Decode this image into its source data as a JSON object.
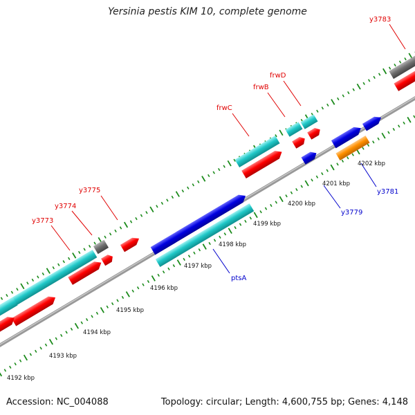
{
  "title": "Yersinia pestis KIM 10, complete genome",
  "footer": {
    "accession": "Accession: NC_004088",
    "summary": "Topology: circular; Length: 4,600,755 bp; Genes: 4,148"
  },
  "colors": {
    "backbone": "#888888",
    "tick": "#1a8a1a",
    "label_red": "#e00000",
    "label_blue": "#0000cc",
    "feature_red": "#ff0000",
    "feature_cyan": "#20c8c8",
    "feature_blue": "#0000e0",
    "feature_orange": "#ff9000",
    "feature_gray": "#707070"
  },
  "axis": {
    "unit": "kbp",
    "ticks": [
      "4192 kbp",
      "4193 kbp",
      "4194 kbp",
      "4195 kbp",
      "4196 kbp",
      "4197 kbp",
      "4198 kbp",
      "4199 kbp",
      "4200 kbp",
      "4201 kbp",
      "4202 kbp"
    ]
  },
  "gene_labels": [
    {
      "name": "y3773",
      "color": "red"
    },
    {
      "name": "y3774",
      "color": "red"
    },
    {
      "name": "y3775",
      "color": "red"
    },
    {
      "name": "frwC",
      "color": "red"
    },
    {
      "name": "frwB",
      "color": "red"
    },
    {
      "name": "frwD",
      "color": "red"
    },
    {
      "name": "y3783",
      "color": "red"
    },
    {
      "name": "ptsA",
      "color": "blue"
    },
    {
      "name": "y3779",
      "color": "blue"
    },
    {
      "name": "y3781",
      "color": "blue"
    }
  ]
}
